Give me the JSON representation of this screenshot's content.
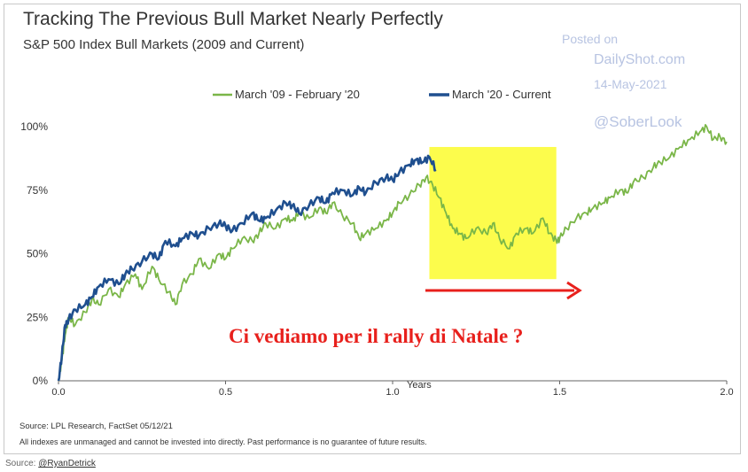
{
  "chart_data": {
    "type": "line",
    "title": "Tracking The Previous Bull Market Nearly Perfectly",
    "subtitle": "S&P 500 Index Bull Markets (2009 and Current)",
    "xlabel": "Years",
    "ylabel": "",
    "xlim": [
      0,
      2.0
    ],
    "ylim": [
      0,
      100
    ],
    "x_ticks": [
      "0.0",
      "0.5",
      "1.0",
      "1.5",
      "2.0"
    ],
    "y_ticks": [
      "0%",
      "25%",
      "50%",
      "75%",
      "100%"
    ],
    "grid": false,
    "legend_position": "top",
    "series": [
      {
        "name": "March '09 - February '20",
        "color": "#7ab648",
        "points": [
          [
            0,
            0
          ],
          [
            0.01,
            8
          ],
          [
            0.02,
            18
          ],
          [
            0.03,
            25
          ],
          [
            0.05,
            22
          ],
          [
            0.08,
            27
          ],
          [
            0.1,
            32
          ],
          [
            0.12,
            30
          ],
          [
            0.15,
            36
          ],
          [
            0.18,
            33
          ],
          [
            0.2,
            38
          ],
          [
            0.23,
            42
          ],
          [
            0.25,
            36
          ],
          [
            0.28,
            45
          ],
          [
            0.3,
            40
          ],
          [
            0.33,
            35
          ],
          [
            0.35,
            30
          ],
          [
            0.37,
            38
          ],
          [
            0.4,
            42
          ],
          [
            0.42,
            48
          ],
          [
            0.45,
            44
          ],
          [
            0.48,
            50
          ],
          [
            0.5,
            48
          ],
          [
            0.52,
            52
          ],
          [
            0.55,
            56
          ],
          [
            0.58,
            55
          ],
          [
            0.6,
            58
          ],
          [
            0.62,
            62
          ],
          [
            0.65,
            60
          ],
          [
            0.68,
            64
          ],
          [
            0.7,
            63
          ],
          [
            0.72,
            66
          ],
          [
            0.75,
            64
          ],
          [
            0.78,
            68
          ],
          [
            0.8,
            66
          ],
          [
            0.82,
            70
          ],
          [
            0.85,
            65
          ],
          [
            0.88,
            62
          ],
          [
            0.9,
            56
          ],
          [
            0.92,
            58
          ],
          [
            0.95,
            60
          ],
          [
            0.98,
            63
          ],
          [
            1.0,
            66
          ],
          [
            1.02,
            70
          ],
          [
            1.05,
            73
          ],
          [
            1.08,
            77
          ],
          [
            1.1,
            80
          ],
          [
            1.12,
            77
          ],
          [
            1.14,
            72
          ],
          [
            1.16,
            66
          ],
          [
            1.18,
            60
          ],
          [
            1.2,
            58
          ],
          [
            1.22,
            56
          ],
          [
            1.25,
            60
          ],
          [
            1.28,
            58
          ],
          [
            1.3,
            62
          ],
          [
            1.32,
            56
          ],
          [
            1.35,
            52
          ],
          [
            1.37,
            58
          ],
          [
            1.4,
            60
          ],
          [
            1.42,
            58
          ],
          [
            1.45,
            64
          ],
          [
            1.47,
            58
          ],
          [
            1.49,
            55
          ],
          [
            1.5,
            56
          ],
          [
            1.52,
            60
          ],
          [
            1.55,
            64
          ],
          [
            1.58,
            66
          ],
          [
            1.6,
            68
          ],
          [
            1.63,
            70
          ],
          [
            1.65,
            72
          ],
          [
            1.68,
            75
          ],
          [
            1.7,
            74
          ],
          [
            1.72,
            78
          ],
          [
            1.75,
            80
          ],
          [
            1.78,
            84
          ],
          [
            1.8,
            86
          ],
          [
            1.83,
            88
          ],
          [
            1.86,
            92
          ],
          [
            1.89,
            95
          ],
          [
            1.92,
            98
          ],
          [
            1.94,
            100
          ],
          [
            1.96,
            95
          ],
          [
            1.98,
            96
          ],
          [
            2.0,
            94
          ]
        ]
      },
      {
        "name": "March '20 - Current",
        "color": "#1f4f8f",
        "points": [
          [
            0,
            0
          ],
          [
            0.01,
            10
          ],
          [
            0.02,
            22
          ],
          [
            0.03,
            24
          ],
          [
            0.05,
            28
          ],
          [
            0.08,
            30
          ],
          [
            0.1,
            33
          ],
          [
            0.12,
            37
          ],
          [
            0.15,
            40
          ],
          [
            0.18,
            38
          ],
          [
            0.2,
            42
          ],
          [
            0.22,
            44
          ],
          [
            0.25,
            47
          ],
          [
            0.28,
            50
          ],
          [
            0.3,
            48
          ],
          [
            0.32,
            55
          ],
          [
            0.35,
            53
          ],
          [
            0.37,
            56
          ],
          [
            0.4,
            58
          ],
          [
            0.42,
            57
          ],
          [
            0.45,
            60
          ],
          [
            0.48,
            62
          ],
          [
            0.5,
            61
          ],
          [
            0.52,
            59
          ],
          [
            0.55,
            62
          ],
          [
            0.58,
            66
          ],
          [
            0.6,
            63
          ],
          [
            0.62,
            64
          ],
          [
            0.65,
            67
          ],
          [
            0.68,
            70
          ],
          [
            0.7,
            69
          ],
          [
            0.72,
            66
          ],
          [
            0.75,
            69
          ],
          [
            0.78,
            72
          ],
          [
            0.8,
            70
          ],
          [
            0.82,
            74
          ],
          [
            0.85,
            75
          ],
          [
            0.88,
            73
          ],
          [
            0.9,
            76
          ],
          [
            0.92,
            74
          ],
          [
            0.95,
            78
          ],
          [
            0.98,
            80
          ],
          [
            1.0,
            79
          ],
          [
            1.02,
            82
          ],
          [
            1.05,
            85
          ],
          [
            1.07,
            87
          ],
          [
            1.09,
            86
          ],
          [
            1.11,
            88
          ],
          [
            1.13,
            83
          ]
        ]
      }
    ]
  },
  "legend": {
    "series1_label": "March '09 - February '20",
    "series2_label": "March '20 - Current"
  },
  "watermark": {
    "posted_on": "Posted on",
    "site": "DailyShot.com",
    "date": "14-May-2021",
    "handle": "@SoberLook"
  },
  "annotation": {
    "text": "Ci vediamo per il rally di Natale ?",
    "highlight_range": [
      1.11,
      1.49
    ],
    "highlight_ylim": [
      40,
      92
    ],
    "highlight_color": "#fcfc4c",
    "arrow_color": "#e8201c"
  },
  "footer": {
    "source": "Source: LPL Research, FactSet 05/12/21",
    "disclaimer": "All indexes are unmanaged and cannot be invested into directly. Past performance is no guarantee of future results."
  },
  "page_source": {
    "prefix": "Source: ",
    "link": "@RyanDetrick"
  }
}
